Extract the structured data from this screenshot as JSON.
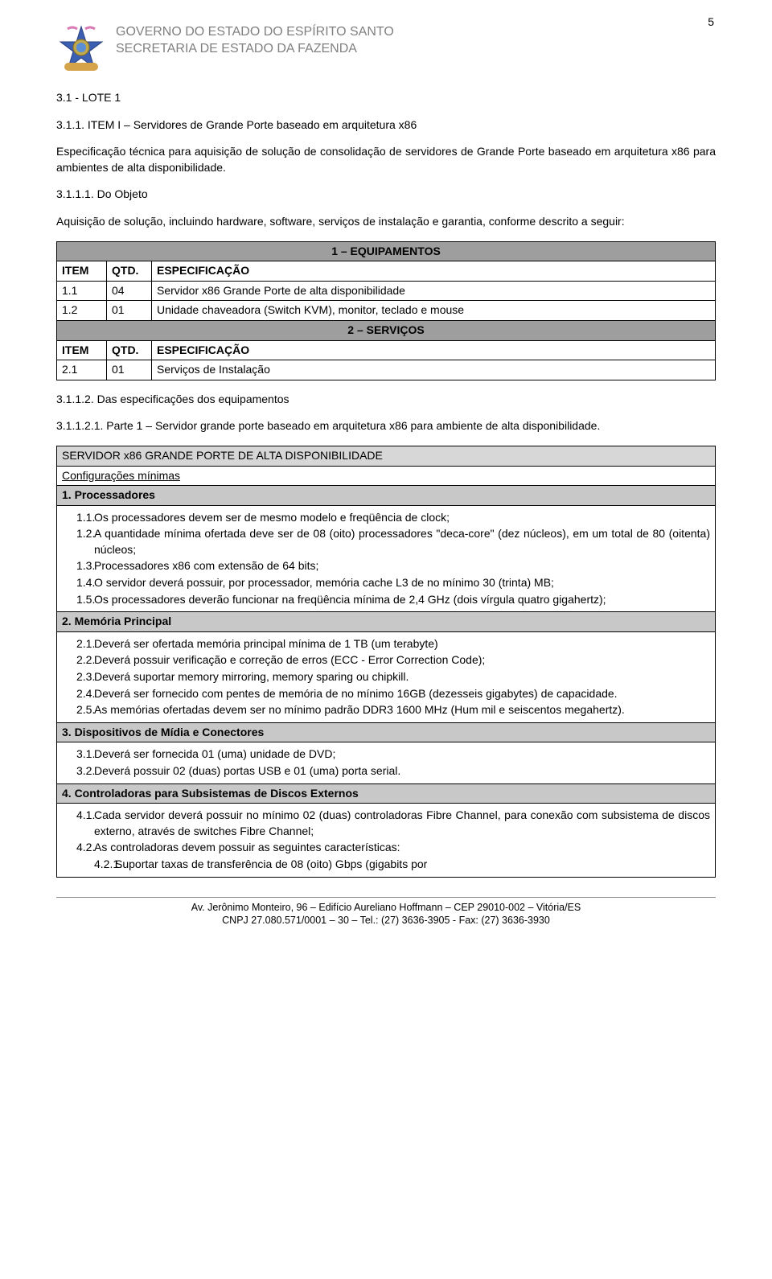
{
  "page_number": "5",
  "header": {
    "line1": "GOVERNO DO ESTADO DO ESPÍRITO SANTO",
    "line2": "SECRETARIA DE ESTADO DA FAZENDA"
  },
  "sec_lote": "3.1 - LOTE 1",
  "item_title": "3.1.1. ITEM I – Servidores de Grande Porte baseado em arquitetura x86",
  "item_desc": "Especificação técnica para aquisição de solução de consolidação de servidores de Grande Porte baseado em arquitetura x86 para ambientes de alta disponibilidade.",
  "objeto_num": "3.1.1.1.    Do Objeto",
  "objeto_txt": "Aquisição de solução, incluindo hardware, software, serviços de instalação e garantia, conforme descrito a seguir:",
  "table": {
    "band1": "1 – EQUIPAMENTOS",
    "h_item": "ITEM",
    "h_qtd": "QTD.",
    "h_espec": "ESPECIFICAÇÃO",
    "rows1": [
      {
        "item": "1.1",
        "qtd": "04",
        "spec": "Servidor x86 Grande Porte de alta disponibilidade"
      },
      {
        "item": "1.2",
        "qtd": "01",
        "spec": "Unidade chaveadora (Switch KVM), monitor, teclado e mouse"
      }
    ],
    "band2": "2 – SERVIÇOS",
    "rows2": [
      {
        "item": "2.1",
        "qtd": "01",
        "spec": "Serviços de Instalação"
      }
    ]
  },
  "spec_equip_title": "3.1.1.2.    Das especificações dos equipamentos",
  "parte1": "3.1.1.2.1. Parte 1 – Servidor grande porte baseado em arquitetura x86 para ambiente de alta disponibilidade.",
  "box_title": "SERVIDOR x86 GRANDE PORTE DE ALTA DISPONIBILIDADE",
  "box_subtitle": "Configurações mínimas",
  "sections": [
    {
      "band": "1.   Processadores",
      "items": [
        {
          "n": "1.1.",
          "t": "Os processadores devem ser de mesmo modelo e freqüência de clock;"
        },
        {
          "n": "1.2.",
          "t": "A quantidade mínima ofertada deve ser de 08 (oito) processadores \"deca-core\" (dez núcleos), em um total de 80 (oitenta) núcleos;"
        },
        {
          "n": "1.3.",
          "t": "Processadores x86 com extensão de 64 bits;"
        },
        {
          "n": "1.4.",
          "t": "O servidor deverá possuir, por processador, memória cache L3 de no mínimo 30 (trinta) MB;"
        },
        {
          "n": "1.5.",
          "t": "Os processadores deverão funcionar na freqüência mínima de 2,4 GHz (dois vírgula quatro gigahertz);"
        }
      ]
    },
    {
      "band": "2.   Memória Principal",
      "items": [
        {
          "n": "2.1.",
          "t": "Deverá ser ofertada memória principal mínima de 1 TB (um terabyte)"
        },
        {
          "n": "2.2.",
          "t": "Deverá possuir verificação e correção de erros (ECC - Error Correction Code);"
        },
        {
          "n": "2.3.",
          "t": "Deverá suportar memory mirroring, memory sparing ou chipkill."
        },
        {
          "n": "2.4.",
          "t": "Deverá ser fornecido com pentes de memória de no mínimo 16GB (dezesseis gigabytes) de capacidade."
        },
        {
          "n": "2.5.",
          "t": "As memórias ofertadas devem ser no mínimo padrão DDR3 1600 MHz (Hum mil e seiscentos megahertz)."
        }
      ]
    },
    {
      "band": "3.   Dispositivos de Mídia e Conectores",
      "items": [
        {
          "n": "3.1.",
          "t": "Deverá ser fornecida 01 (uma) unidade de DVD;"
        },
        {
          "n": "3.2.",
          "t": "Deverá possuir 02 (duas) portas USB e 01 (uma) porta serial."
        }
      ]
    },
    {
      "band": "4.   Controladoras para Subsistemas de Discos Externos",
      "items": [
        {
          "n": "4.1.",
          "t": "Cada servidor deverá possuir no mínimo 02 (duas) controladoras Fibre Channel, para conexão com subsistema de discos externo, através de switches Fibre Channel;"
        },
        {
          "n": "4.2.",
          "t": "As controladoras devem possuir as seguintes características:"
        }
      ],
      "subitems": [
        {
          "n": "4.2.1.",
          "t": "Suportar taxas de transferência de 08 (oito) Gbps (gigabits por"
        }
      ]
    }
  ],
  "footer": {
    "line1": "Av. Jerônimo Monteiro, 96 – Edifício Aureliano Hoffmann – CEP 29010-002 – Vitória/ES",
    "line2": "CNPJ 27.080.571/0001 – 30 – Tel.: (27) 3636-3905 - Fax: (27) 3636-3930"
  }
}
